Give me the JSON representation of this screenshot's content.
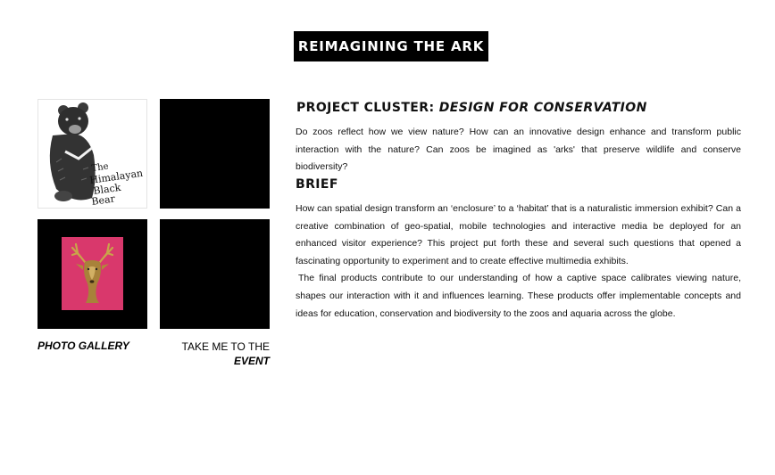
{
  "page": {
    "title": "REIMAGINING THE ARK"
  },
  "tiles": {
    "bear_caption": "The Himalayan Black Bear"
  },
  "links": {
    "gallery": "PHOTO GALLERY",
    "event_line1": "TAKE ME TO THE",
    "event_line2": "EVENT"
  },
  "content": {
    "cluster_label": "PROJECT CLUSTER: ",
    "cluster_name": "DESIGN FOR CONSERVATION",
    "intro": "Do zoos reflect how we view nature? How can an innovative design enhance and transform public interaction with the nature? Can zoos be imagined as 'arks' that preserve wildlife and conserve biodiversity?",
    "brief_heading": "BRIEF",
    "brief_p1": "How can spatial design transform an ‘enclosure’ to a ‘habitat’ that is a naturalistic immersion exhibit? Can a creative combination of geo-spatial, mobile technologies and interactive media be deployed for an enhanced visitor experience? This project put forth these and several such questions that opened a fascinating opportunity to experiment and to create effective multimedia exhibits.",
    "brief_p2": "The final products contribute to our understanding of how a captive space calibrates viewing nature, shapes our interaction with it and influences learning. These products offer implementable concepts and ideas for education, conservation and biodiversity to the zoos and aquaria across the globe."
  },
  "colors": {
    "banner_bg": "#000000",
    "deer_card": "#d9386c",
    "text": "#111111"
  }
}
